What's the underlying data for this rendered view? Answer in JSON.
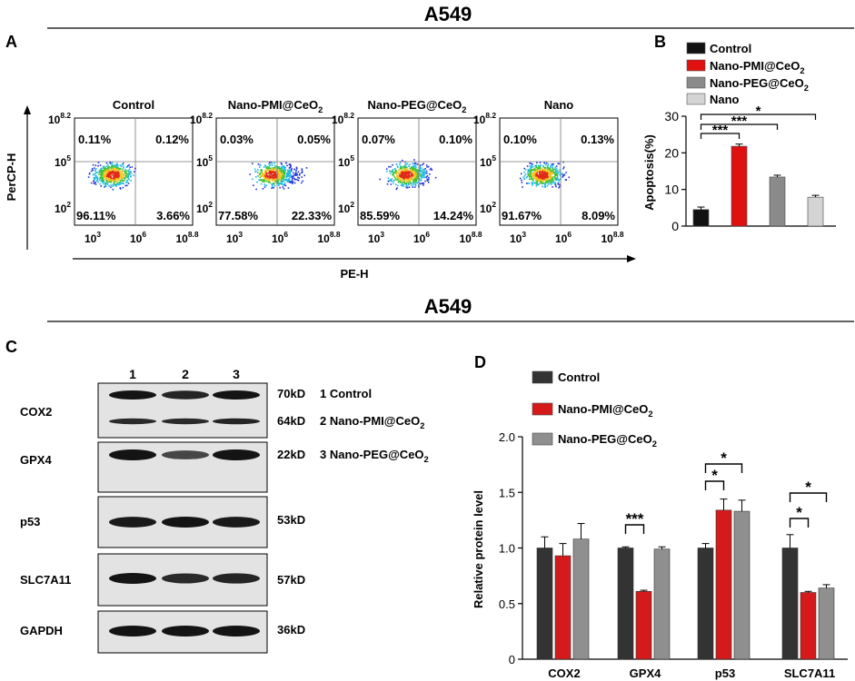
{
  "figure_title_top": "A549",
  "figure_title_bottom": "A549",
  "panel_labels": [
    "A",
    "B",
    "C",
    "D"
  ],
  "flow": {
    "y_axis_label": "PerCP-H",
    "x_axis_label": "PE-H",
    "y_ticks": [
      {
        "base": "10",
        "exp": "8.2"
      },
      {
        "base": "10",
        "exp": "5"
      },
      {
        "base": "10",
        "exp": "2"
      }
    ],
    "x_ticks": [
      {
        "base": "10",
        "exp": "3"
      },
      {
        "base": "10",
        "exp": "6"
      },
      {
        "base": "10",
        "exp": "8.8"
      }
    ],
    "plots": [
      {
        "title": "Control",
        "title_sub": "",
        "ul": "0.11%",
        "ur": "0.12%",
        "ll": "96.11%",
        "lr": "3.66%"
      },
      {
        "title": "Nano-PMI@CeO",
        "title_sub": "2",
        "ul": "0.03%",
        "ur": "0.05%",
        "ll": "77.58%",
        "lr": "22.33%"
      },
      {
        "title": "Nano-PEG@CeO",
        "title_sub": "2",
        "ul": "0.07%",
        "ur": "0.10%",
        "ll": "85.59%",
        "lr": "14.24%"
      },
      {
        "title": "Nano",
        "title_sub": "",
        "ul": "0.10%",
        "ur": "0.13%",
        "ll": "91.67%",
        "lr": "8.09%"
      }
    ]
  },
  "western": {
    "lanes": [
      "1",
      "2",
      "3"
    ],
    "rows": [
      {
        "protein": "COX2",
        "kd": [
          "70kD",
          "64kD"
        ]
      },
      {
        "protein": "GPX4",
        "kd": [
          "22kD"
        ]
      },
      {
        "protein": "p53",
        "kd": [
          "53kD"
        ]
      },
      {
        "protein": "SLC7A11",
        "kd": [
          "57kD"
        ]
      },
      {
        "protein": "GAPDH",
        "kd": [
          "36kD"
        ]
      }
    ],
    "lane_legend": [
      {
        "text": "1 Control",
        "sub": ""
      },
      {
        "text": "2 Nano-PMI@CeO",
        "sub": "2"
      },
      {
        "text": "3 Nano-PEG@CeO",
        "sub": "2"
      }
    ]
  },
  "chart_data": [
    {
      "type": "bar",
      "ylabel": "Apoptosis(%)",
      "ylim": [
        0,
        30
      ],
      "yticks": [
        0,
        10,
        20,
        30
      ],
      "legend_position": "top",
      "series": [
        {
          "name": "Control",
          "name_sub": "",
          "values": [
            4.5
          ],
          "error": [
            0.7
          ],
          "color": "#111111"
        },
        {
          "name": "Nano-PMI@CeO",
          "name_sub": "2",
          "values": [
            21.8
          ],
          "error": [
            0.6
          ],
          "color": "#e01010"
        },
        {
          "name": "Nano-PEG@CeO",
          "name_sub": "2",
          "values": [
            13.4
          ],
          "error": [
            0.5
          ],
          "color": "#8a8a8a"
        },
        {
          "name": "Nano",
          "name_sub": "",
          "values": [
            7.9
          ],
          "error": [
            0.5
          ],
          "color": "#d4d4d4"
        }
      ],
      "significance": [
        "***",
        "***",
        "*"
      ]
    },
    {
      "type": "bar",
      "ylabel": "Relative protein level",
      "ylim": [
        0,
        2.0
      ],
      "yticks": [
        "0",
        "0.5",
        "1.0",
        "1.5",
        "2.0"
      ],
      "categories": [
        "COX2",
        "GPX4",
        "p53",
        "SLC7A11"
      ],
      "legend_position": "top-left",
      "series": [
        {
          "name": "Control",
          "name_sub": "",
          "values": [
            1.0,
            1.0,
            1.0,
            1.0
          ],
          "error": [
            0.1,
            0.01,
            0.04,
            0.12
          ],
          "color": "#333333"
        },
        {
          "name": "Nano-PMI@CeO",
          "name_sub": "2",
          "values": [
            0.93,
            0.61,
            1.34,
            0.6
          ],
          "error": [
            0.11,
            0.01,
            0.1,
            0.01
          ],
          "color": "#d41a1a"
        },
        {
          "name": "Nano-PEG@CeO",
          "name_sub": "2",
          "values": [
            1.08,
            0.99,
            1.33,
            0.64
          ],
          "error": [
            0.14,
            0.02,
            0.1,
            0.03
          ],
          "color": "#8f8f8f"
        }
      ],
      "significance": [
        "***",
        "*",
        "*",
        "*",
        "*"
      ]
    }
  ]
}
